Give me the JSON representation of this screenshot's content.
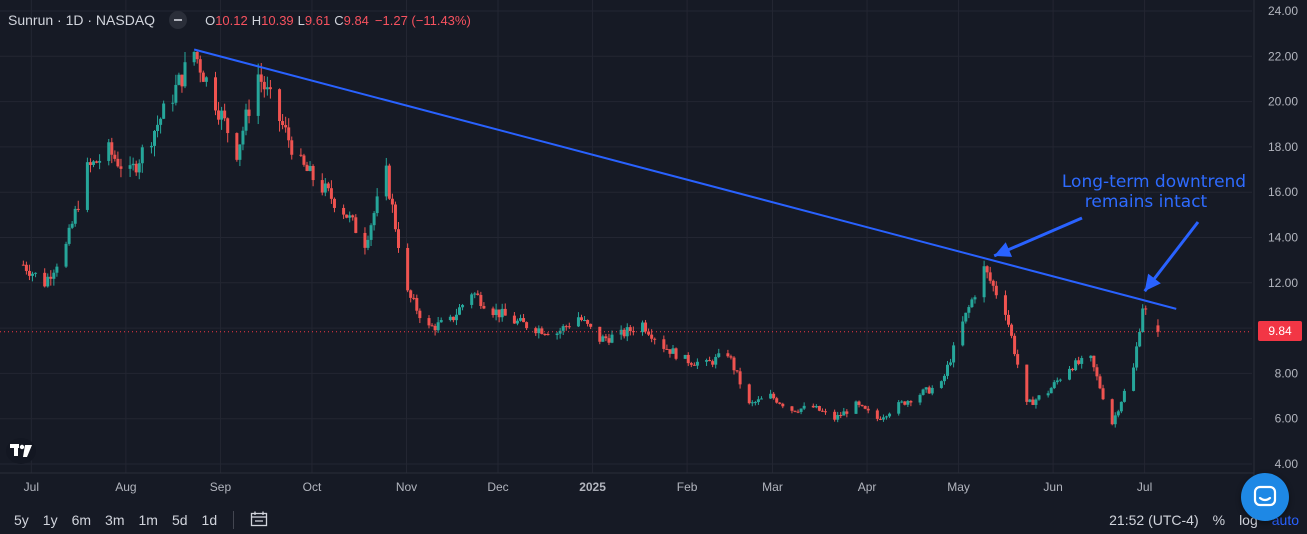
{
  "header": {
    "title": "Sunrun · 1D · NASDAQ",
    "open_label": "O",
    "open": "10.12",
    "high_label": "H",
    "high": "10.39",
    "low_label": "L",
    "low": "9.61",
    "close_label": "C",
    "close": "9.84",
    "change": "−1.27 (−11.43%)"
  },
  "price_badge": "9.84",
  "annotation": {
    "line1": "Long-term downtrend",
    "line2": "remains intact"
  },
  "colors": {
    "up": "#26a69a",
    "down": "#ef5350",
    "trendline": "#2962ff",
    "background": "#161a25",
    "grid": "#232632"
  },
  "bottom": {
    "ranges": [
      "5y",
      "1y",
      "6m",
      "3m",
      "1m",
      "5d",
      "1d"
    ],
    "time": "21:52 (UTC-4)",
    "percent": "%",
    "log": "log",
    "auto": "auto"
  },
  "icons": [
    "tradingview-logo-icon",
    "calendar-range-icon",
    "chat-support-icon"
  ],
  "chart_data": {
    "type": "candlestick",
    "symbol": "Sunrun",
    "interval": "1D",
    "exchange": "NASDAQ",
    "y_axis": {
      "ticks": [
        "24.00",
        "22.00",
        "20.00",
        "18.00",
        "16.00",
        "14.00",
        "12.00",
        "10.00",
        "8.00",
        "6.00",
        "4.00"
      ],
      "ylim": [
        3.9,
        24.0
      ]
    },
    "x_axis": {
      "ticks": [
        "Jul",
        "Aug",
        "Sep",
        "Oct",
        "Nov",
        "Dec",
        "2025",
        "Feb",
        "Mar",
        "Apr",
        "May",
        "Jun",
        "Jul"
      ]
    },
    "last_price": 9.84,
    "trendline": {
      "start": [
        "2024-08-26",
        22.3
      ],
      "end": [
        "2025-07-14",
        10.85
      ],
      "color": "#2962ff"
    },
    "arrow_targets": [
      [
        "2025-05-14",
        13.1
      ],
      [
        "2025-07-03",
        11.1
      ]
    ],
    "closes": [
      {
        "date": "2024-07-01",
        "close": 12.8
      },
      {
        "date": "2024-07-08",
        "close": 12.0
      },
      {
        "date": "2024-07-15",
        "close": 13.6
      },
      {
        "date": "2024-07-22",
        "close": 17.0
      },
      {
        "date": "2024-07-29",
        "close": 17.8
      },
      {
        "date": "2024-08-05",
        "close": 16.8
      },
      {
        "date": "2024-08-12",
        "close": 18.5
      },
      {
        "date": "2024-08-19",
        "close": 20.3
      },
      {
        "date": "2024-08-26",
        "close": 22.2
      },
      {
        "date": "2024-09-02",
        "close": 20.0
      },
      {
        "date": "2024-09-09",
        "close": 17.8
      },
      {
        "date": "2024-09-16",
        "close": 21.2
      },
      {
        "date": "2024-09-23",
        "close": 19.2
      },
      {
        "date": "2024-09-30",
        "close": 17.2
      },
      {
        "date": "2024-10-07",
        "close": 16.2
      },
      {
        "date": "2024-10-14",
        "close": 15.2
      },
      {
        "date": "2024-10-21",
        "close": 13.8
      },
      {
        "date": "2024-10-28",
        "close": 16.8
      },
      {
        "date": "2024-11-04",
        "close": 11.5
      },
      {
        "date": "2024-11-11",
        "close": 10.0
      },
      {
        "date": "2024-11-18",
        "close": 10.3
      },
      {
        "date": "2024-11-25",
        "close": 11.6
      },
      {
        "date": "2024-12-02",
        "close": 10.8
      },
      {
        "date": "2024-12-09",
        "close": 10.3
      },
      {
        "date": "2024-12-16",
        "close": 10.0
      },
      {
        "date": "2024-12-23",
        "close": 9.8
      },
      {
        "date": "2024-12-30",
        "close": 10.5
      },
      {
        "date": "2025-01-06",
        "close": 9.5
      },
      {
        "date": "2025-01-13",
        "close": 9.7
      },
      {
        "date": "2025-01-20",
        "close": 10.2
      },
      {
        "date": "2025-01-27",
        "close": 9.2
      },
      {
        "date": "2025-02-03",
        "close": 8.6
      },
      {
        "date": "2025-02-10",
        "close": 8.4
      },
      {
        "date": "2025-02-17",
        "close": 8.9
      },
      {
        "date": "2025-02-24",
        "close": 6.6
      },
      {
        "date": "2025-03-03",
        "close": 7.0
      },
      {
        "date": "2025-03-10",
        "close": 6.4
      },
      {
        "date": "2025-03-17",
        "close": 6.5
      },
      {
        "date": "2025-03-24",
        "close": 6.0
      },
      {
        "date": "2025-03-31",
        "close": 6.6
      },
      {
        "date": "2025-04-07",
        "close": 6.0
      },
      {
        "date": "2025-04-14",
        "close": 6.6
      },
      {
        "date": "2025-04-21",
        "close": 7.1
      },
      {
        "date": "2025-04-28",
        "close": 7.5
      },
      {
        "date": "2025-05-05",
        "close": 10.2
      },
      {
        "date": "2025-05-12",
        "close": 12.6
      },
      {
        "date": "2025-05-19",
        "close": 10.8
      },
      {
        "date": "2025-05-26",
        "close": 6.6
      },
      {
        "date": "2025-06-02",
        "close": 7.2
      },
      {
        "date": "2025-06-09",
        "close": 8.3
      },
      {
        "date": "2025-06-16",
        "close": 8.6
      },
      {
        "date": "2025-06-23",
        "close": 5.8
      },
      {
        "date": "2025-06-30",
        "close": 8.2
      },
      {
        "date": "2025-07-03",
        "close": 11.0
      },
      {
        "date": "2025-07-07",
        "close": 9.84
      }
    ]
  }
}
